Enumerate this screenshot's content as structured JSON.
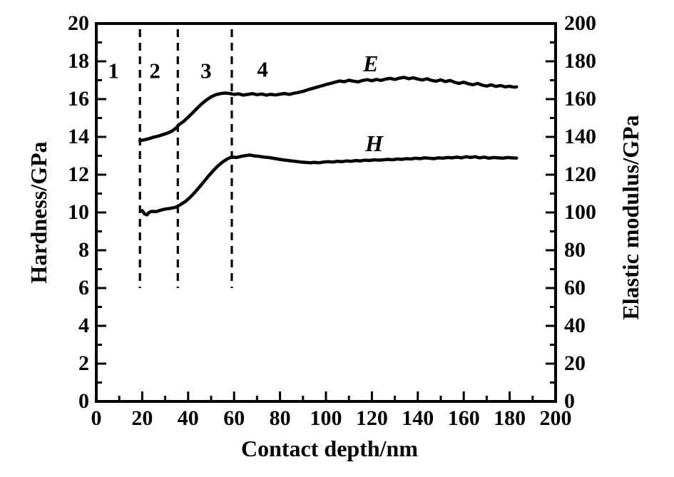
{
  "figure": {
    "background_color": "#ffffff",
    "ink_color": "#000000"
  },
  "chart_data": {
    "type": "line",
    "title": "",
    "x_axis": {
      "label": "Contact depth/nm",
      "min": 0,
      "max": 200,
      "major_tick": 20,
      "minor_tick": 10,
      "tick_labels": [
        "0",
        "20",
        "40",
        "60",
        "80",
        "100",
        "120",
        "140",
        "160",
        "180",
        "200"
      ]
    },
    "left_y_axis": {
      "label": "Hardness/GPa",
      "min": 0,
      "max": 20,
      "major_tick": 2,
      "minor_tick": 1,
      "tick_labels": [
        "0",
        "2",
        "4",
        "6",
        "8",
        "10",
        "12",
        "14",
        "16",
        "18",
        "20"
      ]
    },
    "right_y_axis": {
      "label": "Elastic modulus/GPa",
      "min": 0,
      "max": 200,
      "major_tick": 20,
      "minor_tick": 10,
      "tick_labels": [
        "0",
        "20",
        "40",
        "60",
        "80",
        "100",
        "120",
        "140",
        "160",
        "180",
        "200"
      ]
    },
    "grid": "off",
    "legend": "none",
    "regions": [
      {
        "label": "1",
        "x": 7.5,
        "y": 17.5
      },
      {
        "label": "2",
        "x": 25.5,
        "y": 17.5
      },
      {
        "label": "3",
        "x": 47.8,
        "y": 17.5
      },
      {
        "label": "4",
        "x": 72.4,
        "y": 17.6
      }
    ],
    "dashed_lines": {
      "x_values": [
        19,
        35.5,
        59
      ],
      "y_bottom": 6,
      "y_top": 19.7
    },
    "series": [
      {
        "name": "E",
        "axis": "right",
        "label_pos": {
          "x": 119.5,
          "y": 179
        },
        "points": [
          [
            19,
            138.0
          ],
          [
            21,
            138.5
          ],
          [
            23,
            139.1
          ],
          [
            25,
            139.9
          ],
          [
            27,
            140.4
          ],
          [
            29,
            141.2
          ],
          [
            31,
            142.0
          ],
          [
            33,
            143.1
          ],
          [
            35,
            145.0
          ],
          [
            36,
            146.5
          ],
          [
            38,
            148.2
          ],
          [
            40,
            150.4
          ],
          [
            42,
            152.8
          ],
          [
            44,
            155.3
          ],
          [
            46,
            157.6
          ],
          [
            48,
            159.6
          ],
          [
            50,
            161.2
          ],
          [
            52,
            162.3
          ],
          [
            54,
            162.9
          ],
          [
            56,
            163.2
          ],
          [
            58,
            163.0
          ],
          [
            60,
            162.5
          ],
          [
            62,
            162.8
          ],
          [
            64,
            162.1
          ],
          [
            66,
            162.5
          ],
          [
            68,
            162.9
          ],
          [
            70,
            162.3
          ],
          [
            72,
            162.7
          ],
          [
            74,
            162.1
          ],
          [
            76,
            162.5
          ],
          [
            78,
            162.2
          ],
          [
            80,
            162.6
          ],
          [
            82,
            163.0
          ],
          [
            84,
            162.5
          ],
          [
            86,
            163.1
          ],
          [
            88,
            163.5
          ],
          [
            90,
            164.1
          ],
          [
            92,
            164.9
          ],
          [
            94,
            165.6
          ],
          [
            96,
            166.3
          ],
          [
            98,
            167.0
          ],
          [
            100,
            167.7
          ],
          [
            102,
            168.3
          ],
          [
            104,
            169.0
          ],
          [
            106,
            169.6
          ],
          [
            108,
            169.2
          ],
          [
            110,
            170.0
          ],
          [
            112,
            169.5
          ],
          [
            114,
            169.1
          ],
          [
            116,
            169.9
          ],
          [
            118,
            170.3
          ],
          [
            120,
            169.7
          ],
          [
            122,
            170.4
          ],
          [
            124,
            169.9
          ],
          [
            126,
            170.6
          ],
          [
            128,
            171.0
          ],
          [
            130,
            170.4
          ],
          [
            132,
            171.1
          ],
          [
            134,
            171.5
          ],
          [
            136,
            170.8
          ],
          [
            138,
            171.3
          ],
          [
            140,
            170.6
          ],
          [
            142,
            170.1
          ],
          [
            144,
            170.8
          ],
          [
            146,
            169.9
          ],
          [
            148,
            169.5
          ],
          [
            150,
            170.2
          ],
          [
            152,
            169.3
          ],
          [
            154,
            169.9
          ],
          [
            156,
            168.9
          ],
          [
            158,
            168.3
          ],
          [
            160,
            169.0
          ],
          [
            162,
            168.1
          ],
          [
            164,
            167.6
          ],
          [
            166,
            168.3
          ],
          [
            168,
            167.4
          ],
          [
            170,
            166.9
          ],
          [
            172,
            167.6
          ],
          [
            174,
            166.7
          ],
          [
            176,
            167.2
          ],
          [
            178,
            166.5
          ],
          [
            180,
            166.8
          ],
          [
            182,
            166.3
          ],
          [
            183,
            166.5
          ]
        ]
      },
      {
        "name": "H",
        "axis": "left",
        "label_pos": {
          "x": 121,
          "y": 13.66
        },
        "points": [
          [
            20,
            10.1
          ],
          [
            21,
            9.93
          ],
          [
            22,
            9.87
          ],
          [
            23,
            10.0
          ],
          [
            24,
            10.06
          ],
          [
            26,
            10.04
          ],
          [
            28,
            10.12
          ],
          [
            30,
            10.18
          ],
          [
            32,
            10.21
          ],
          [
            34,
            10.26
          ],
          [
            35,
            10.3
          ],
          [
            37,
            10.44
          ],
          [
            39,
            10.6
          ],
          [
            41,
            10.82
          ],
          [
            43,
            11.08
          ],
          [
            45,
            11.36
          ],
          [
            47,
            11.65
          ],
          [
            49,
            11.95
          ],
          [
            51,
            12.22
          ],
          [
            53,
            12.47
          ],
          [
            55,
            12.67
          ],
          [
            57,
            12.83
          ],
          [
            59,
            12.94
          ],
          [
            61,
            12.91
          ],
          [
            63,
            12.97
          ],
          [
            65,
            13.01
          ],
          [
            67,
            13.04
          ],
          [
            69,
            12.99
          ],
          [
            71,
            12.97
          ],
          [
            73,
            12.93
          ],
          [
            75,
            12.91
          ],
          [
            77,
            12.87
          ],
          [
            79,
            12.83
          ],
          [
            81,
            12.79
          ],
          [
            83,
            12.76
          ],
          [
            85,
            12.73
          ],
          [
            87,
            12.7
          ],
          [
            89,
            12.67
          ],
          [
            91,
            12.65
          ],
          [
            93,
            12.63
          ],
          [
            95,
            12.65
          ],
          [
            97,
            12.63
          ],
          [
            99,
            12.67
          ],
          [
            101,
            12.69
          ],
          [
            103,
            12.67
          ],
          [
            105,
            12.71
          ],
          [
            107,
            12.69
          ],
          [
            109,
            12.73
          ],
          [
            111,
            12.71
          ],
          [
            113,
            12.75
          ],
          [
            115,
            12.73
          ],
          [
            117,
            12.77
          ],
          [
            119,
            12.75
          ],
          [
            121,
            12.79
          ],
          [
            123,
            12.77
          ],
          [
            125,
            12.79
          ],
          [
            127,
            12.81
          ],
          [
            129,
            12.79
          ],
          [
            131,
            12.83
          ],
          [
            133,
            12.81
          ],
          [
            135,
            12.85
          ],
          [
            137,
            12.83
          ],
          [
            139,
            12.87
          ],
          [
            141,
            12.85
          ],
          [
            143,
            12.89
          ],
          [
            145,
            12.87
          ],
          [
            147,
            12.85
          ],
          [
            149,
            12.89
          ],
          [
            151,
            12.87
          ],
          [
            153,
            12.91
          ],
          [
            155,
            12.89
          ],
          [
            157,
            12.93
          ],
          [
            159,
            12.89
          ],
          [
            161,
            12.95
          ],
          [
            163,
            12.91
          ],
          [
            165,
            12.95
          ],
          [
            167,
            12.89
          ],
          [
            169,
            12.93
          ],
          [
            171,
            12.87
          ],
          [
            173,
            12.91
          ],
          [
            175,
            12.89
          ],
          [
            177,
            12.87
          ],
          [
            179,
            12.91
          ],
          [
            181,
            12.89
          ],
          [
            183,
            12.88
          ]
        ]
      }
    ]
  }
}
